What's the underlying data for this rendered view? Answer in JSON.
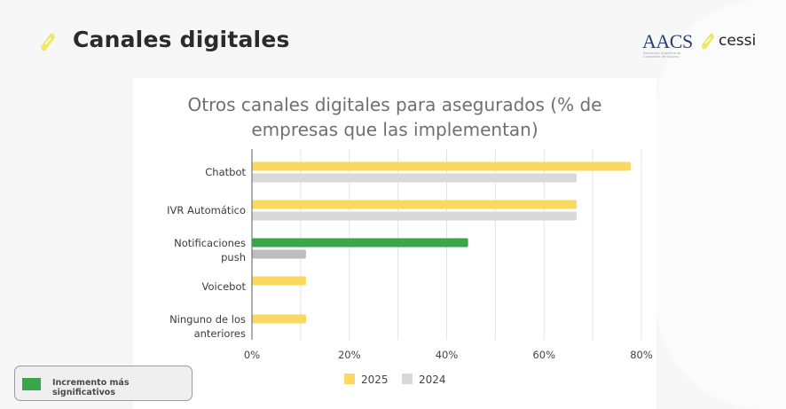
{
  "header": {
    "title": "Canales digitales",
    "logos": {
      "aacs": "AACS",
      "aacs_subtitle": "Asociación Argentina de Compañías de Seguros",
      "cessi": "cessi"
    },
    "accent_color": "#ede86a"
  },
  "highlight_legend": {
    "label": "Incremento más significativos",
    "color": "#3aa54a"
  },
  "chart_data": {
    "type": "bar",
    "orientation": "horizontal",
    "title": "Otros canales digitales para asegurados (% de empresas que las implementan)",
    "title_lines": [
      "Otros canales digitales para asegurados (% de",
      "empresas que las implementan)"
    ],
    "categories": [
      [
        "Chatbot"
      ],
      [
        "IVR Automático"
      ],
      [
        "Notificaciones",
        "push"
      ],
      [
        "Voicebot"
      ],
      [
        "Ninguno de los",
        "anteriores"
      ]
    ],
    "category_names": [
      "Chatbot",
      "IVR Automático",
      "Notificaciones push",
      "Voicebot",
      "Ninguno de los anteriores"
    ],
    "series": [
      {
        "name": "2025",
        "color": "#fbd860",
        "values": [
          77.8,
          66.7,
          44.4,
          11.1,
          11.1
        ]
      },
      {
        "name": "2024",
        "color": "#d9d9d9",
        "values": [
          66.7,
          66.7,
          11.1,
          0,
          0
        ]
      }
    ],
    "highlight": {
      "category_index": 2,
      "series_index": 0,
      "color": "#3aa54a",
      "series1_color": "#bdbdbd"
    },
    "xlim": [
      0,
      80
    ],
    "xticks": [
      0,
      20,
      40,
      60,
      80
    ],
    "xtick_labels": [
      "0%",
      "20%",
      "40%",
      "60%",
      "80%"
    ],
    "minor_grid_step": 10,
    "grid": true,
    "xlabel": "",
    "ylabel": "",
    "legend": {
      "entries": [
        "2025",
        "2024"
      ],
      "placement": "bottom-center"
    }
  }
}
